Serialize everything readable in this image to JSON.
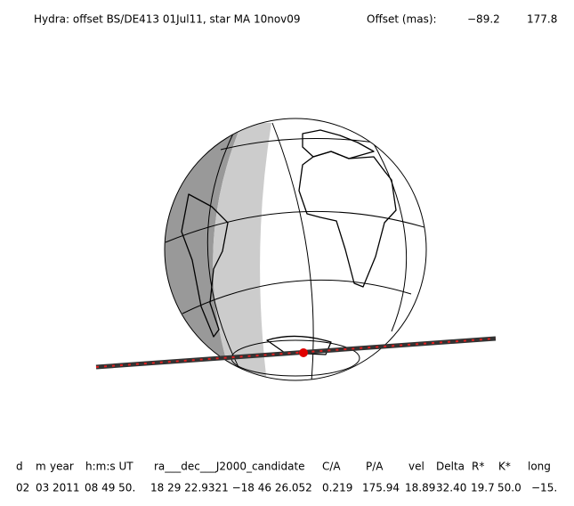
{
  "header": {
    "title": "Hydra: offset BS/DE413 01Jul11, star MA 10nov09",
    "offset_label": "Offset (mas):",
    "offset_values": [
      "−89.2",
      "177.8"
    ]
  },
  "table": {
    "columns": [
      "d",
      "m",
      "year",
      "h:m:s UT",
      "ra___dec___J2000_candidate",
      "C/A",
      "P/A",
      "vel",
      "Delta",
      "R*",
      "K*",
      "long"
    ],
    "rows": [
      [
        "02",
        "03",
        "2011",
        "08 49 50.",
        "18 29 22.9321 −18 46 26.052",
        "0.219",
        "175.94",
        "18.89",
        "32.40",
        "19.7",
        "50.0",
        "−15."
      ]
    ]
  }
}
